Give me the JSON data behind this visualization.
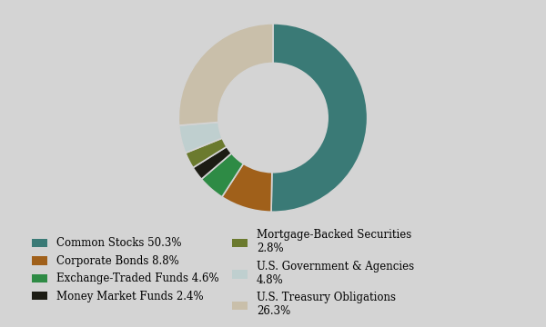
{
  "labels": [
    "Common Stocks 50.3%",
    "Corporate Bonds 8.8%",
    "Exchange-Traded Funds 4.6%",
    "Money Market Funds 2.4%",
    "Mortgage-Backed Securities 2.8%",
    "U.S. Government & Agencies 4.8%",
    "U.S. Treasury Obligations 26.3%"
  ],
  "values": [
    50.3,
    8.8,
    4.6,
    2.4,
    2.8,
    4.8,
    26.3
  ],
  "colors": [
    "#3a7a76",
    "#a0601a",
    "#2e8b45",
    "#1c1c14",
    "#6b7a2e",
    "#bfcfcf",
    "#c9bfaa"
  ],
  "background_color": "#d4d4d4",
  "legend_labels_col1": [
    "Common Stocks 50.3%",
    "Exchange-Traded Funds 4.6%",
    "Mortgage-Backed Securities\n2.8%",
    "U.S. Treasury Obligations\n26.3%"
  ],
  "legend_colors_col1": [
    "#3a7a76",
    "#2e8b45",
    "#6b7a2e",
    "#c9bfaa"
  ],
  "legend_labels_col2": [
    "Corporate Bonds 8.8%",
    "Money Market Funds 2.4%",
    "U.S. Government & Agencies\n4.8%"
  ],
  "legend_colors_col2": [
    "#a0601a",
    "#1c1c14",
    "#bfcfcf"
  ],
  "donut_width": 0.42,
  "startangle": 90
}
